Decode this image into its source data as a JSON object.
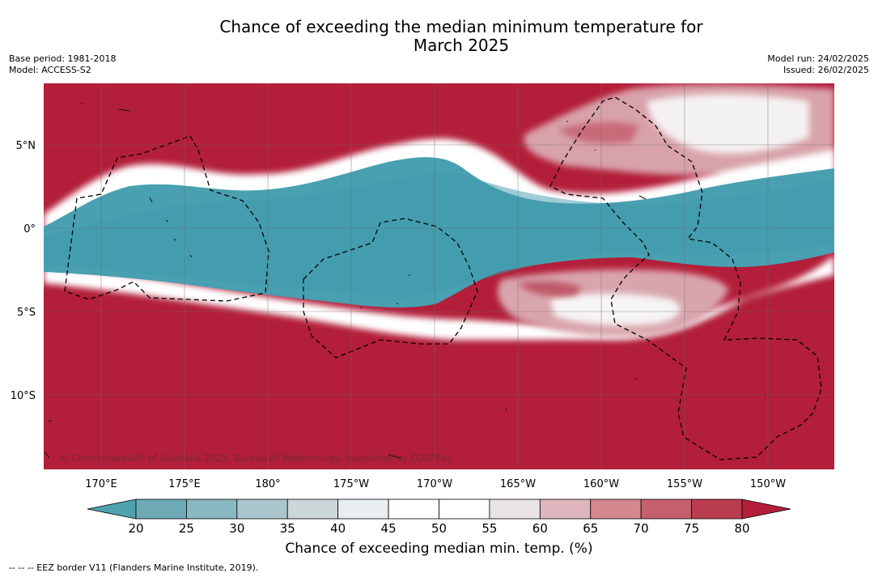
{
  "header": {
    "title_line1": "Chance of exceeding the median minimum temperature for",
    "title_line2": "March 2025",
    "base_period": "Base period: 1981-2018",
    "model": "Model: ACCESS-S2",
    "model_run": "Model run: 24/02/2025",
    "issued": "Issued: 26/02/2025"
  },
  "map": {
    "lat_labels": [
      "5°N",
      "0°",
      "5°S",
      "10°S"
    ],
    "lon_labels": [
      "170°E",
      "175°E",
      "180°",
      "175°W",
      "170°W",
      "165°W",
      "160°W",
      "155°W",
      "150°W"
    ],
    "copyright": "© Commonwealth of Australia 2025, Bureau of Meteorology, supported by COSPPac",
    "colors": {
      "warm": "#b31e3a",
      "cool": "#48a0b1",
      "neutral": "#ffffff"
    }
  },
  "colorbar": {
    "ticks": [
      "20",
      "25",
      "30",
      "35",
      "40",
      "45",
      "50",
      "55",
      "60",
      "65",
      "70",
      "75",
      "80"
    ],
    "colors": [
      "#4ea2b0",
      "#6ea9b6",
      "#89b7c2",
      "#aac6cc",
      "#cdd6d8",
      "#e9eff1",
      "#ffffff",
      "#ffffff",
      "#e8e3e5",
      "#dfb6bd",
      "#d3878f",
      "#c4606e",
      "#b93c4f",
      "#b31e3a"
    ],
    "title": "Chance of exceeding median min. temp. (%)"
  },
  "footnote": "--  --  -- EEZ border V11 (Flanders Marine Institute, 2019)."
}
